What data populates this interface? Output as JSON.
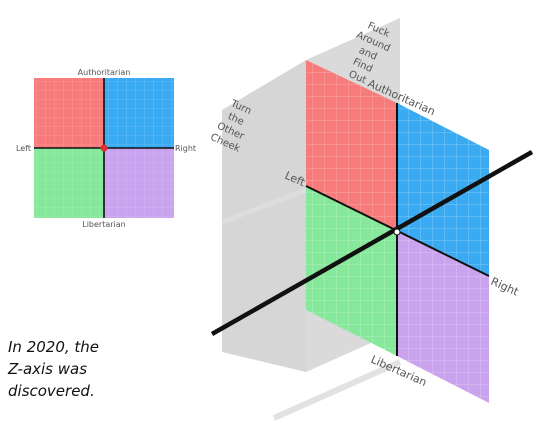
{
  "small_compass": {
    "label_top": "Authoritarian",
    "label_bottom": "Libertarian",
    "label_left": "Left",
    "label_right": "Right"
  },
  "cube": {
    "label_top": "Authoritarian",
    "label_bottom": "Libertarian",
    "label_left": "Left",
    "label_right": "Right",
    "back_plane_lines": [
      "Fuck",
      "Around",
      "and",
      "Find",
      "Out"
    ],
    "front_plane_lines": [
      "Turn",
      "the",
      "Other",
      "Cheek"
    ]
  },
  "caption_lines": [
    "In 2020, the",
    "Z-axis was",
    "discovered."
  ],
  "colors": {
    "auth_left": "#f77b7b",
    "auth_right": "#3aabf2",
    "lib_left": "#86e89a",
    "lib_right": "#c9a3ee",
    "plane_gray": "#c8c8c8",
    "axis": "#111111",
    "center_dot": "#e03030"
  }
}
